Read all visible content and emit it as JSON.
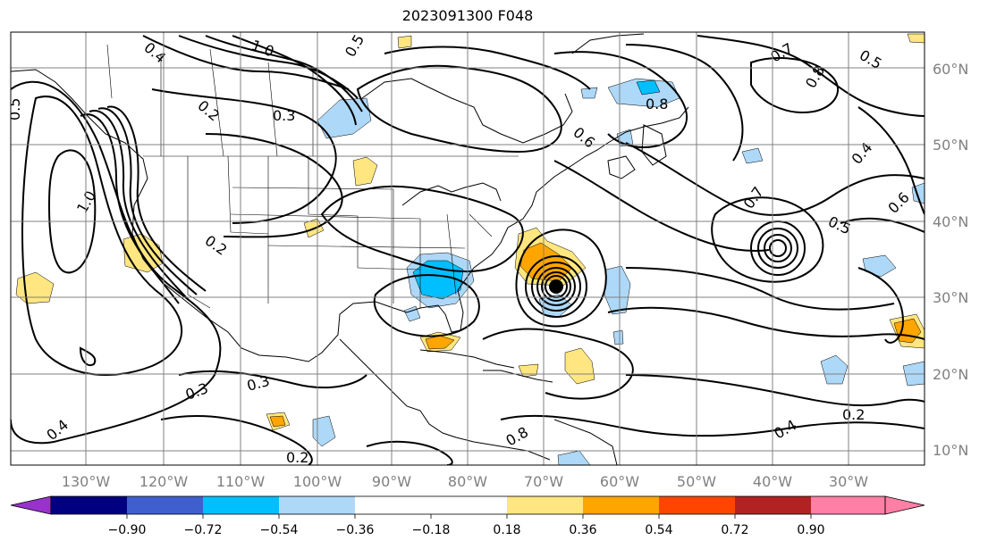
{
  "title": "2023091300 F048",
  "map": {
    "lon_labels": [
      "130°W",
      "120°W",
      "110°W",
      "100°W",
      "90°W",
      "80°W",
      "70°W",
      "60°W",
      "50°W",
      "40°W",
      "30°W"
    ],
    "lat_labels": [
      "60°N",
      "50°N",
      "40°N",
      "30°N",
      "20°N",
      "10°N"
    ],
    "contour_labels": [
      "0.4",
      "1.0",
      "0.5",
      "0.7",
      "0.5",
      "0.8",
      "0.2",
      "0.3",
      "1.0",
      "0.6",
      "0.8",
      "0.5",
      "0.4",
      "0.7",
      "0.6",
      "0.5",
      "0.2",
      "0.3",
      "0.3",
      "0.4",
      "0.2",
      "0.8",
      "0.2",
      "0.4"
    ]
  },
  "colorbar": {
    "ticks": [
      "−0.90",
      "−0.72",
      "−0.54",
      "−0.36",
      "−0.18",
      "0.18",
      "0.36",
      "0.54",
      "0.72",
      "0.90"
    ],
    "colors": {
      "lt_neg090": "#9932cc",
      "neg090_neg072": "#000080",
      "neg072_neg054": "#3f5fcf",
      "neg054_neg036": "#00bfff",
      "neg036_neg018": "#add8f8",
      "neg018_018": "#ffffff",
      "pos018_036": "#ffe680",
      "pos036_054": "#ffa500",
      "pos054_072": "#ff4500",
      "pos072_090": "#b22222",
      "gt_090": "#ff7fa6"
    }
  }
}
